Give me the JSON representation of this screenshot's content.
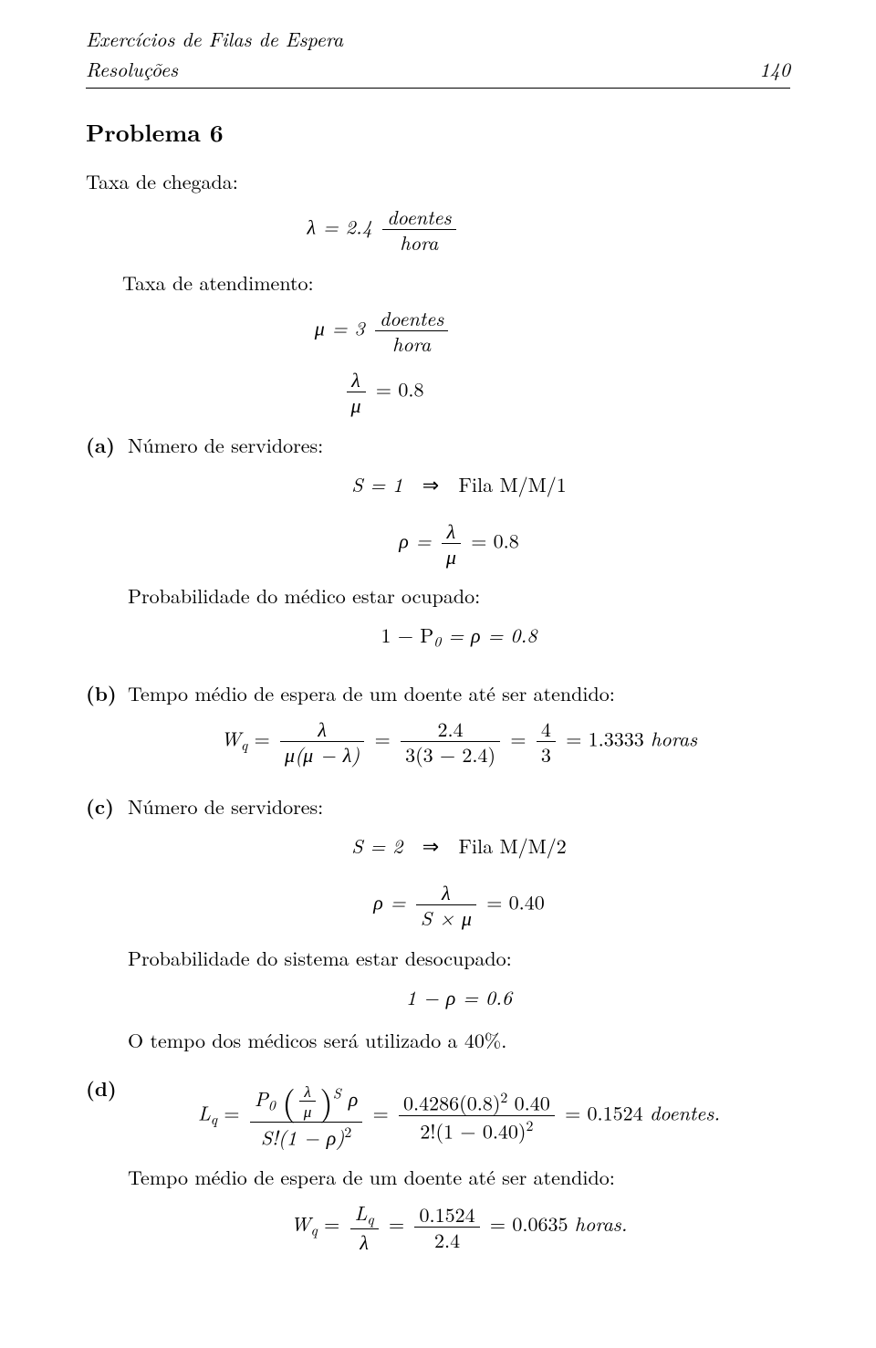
{
  "header": {
    "left1": "Exercícios de Filas de Espera",
    "left2": "Resoluções",
    "pageno": "140"
  },
  "title": "Problema 6",
  "p_arrival": "Taxa de chegada:",
  "p_service": "Taxa de atendimento:",
  "eq_lambda": "λ = 2.4",
  "unit_doentes": "doentes",
  "unit_hora": "hora",
  "eq_mu": "μ = 3",
  "eq_ratio_08": "= 0.8",
  "frac_lambda": "λ",
  "frac_mu": "μ",
  "a": {
    "bullet": "(a)",
    "label": "Número de servidores:",
    "eq_S": "S = 1",
    "arrow": "⇒",
    "fila": "Fila M/M/1",
    "rho_lhs": "ρ =",
    "rho_rhs": "= 0.8",
    "prob_text": "Probabilidade do médico estar ocupado:",
    "p0_eq": "1 − P",
    "p0_sub": "0",
    "p0_rhs": " = ρ = 0.8"
  },
  "b": {
    "bullet": "(b)",
    "label": "Tempo médio de espera de um doente até ser atendido:",
    "Wq": "W",
    "Wq_sub": "q",
    "mumu": "μ(μ − λ)",
    "f2num": "2.4",
    "f2den": "3(3 − 2.4)",
    "f3num": "4",
    "f3den": "3",
    "rhs": "= 1.3333 ",
    "horas": "horas"
  },
  "c": {
    "bullet": "(c)",
    "label": "Número de servidores:",
    "eq_S": "S = 2",
    "arrow": "⇒",
    "fila": "Fila M/M/2",
    "rho_lhs": "ρ =",
    "rho_den": "S × μ",
    "rho_rhs": "= 0.40",
    "prob_text": "Probabilidade do sistema estar desocupado:",
    "eq_1rho": "1 − ρ = 0.6",
    "time_text": "O tempo dos médicos será utilizado a 40%."
  },
  "d": {
    "bullet": "(d)",
    "Lq": "L",
    "Lq_sub": "q",
    "eq": " =",
    "P0": "P",
    "sub0": "0",
    "sup_S": "S",
    "rho": " ρ",
    "den1": "S!(1 − ρ)",
    "den1_sup": "2",
    "num2": "0.4286(0.8)",
    "num2_sup": "2",
    "num2b": " 0.40",
    "den2": "2!(1 − 0.40)",
    "den2_sup": "2",
    "rhs": "= 0.1524 ",
    "doentes_word": "doentes.",
    "time_text": "Tempo médio de espera de um doente até ser atendido:",
    "Wq": "W",
    "Wq_sub": "q",
    "f1num_L": "L",
    "f1num_sub": "q",
    "f1den": "λ",
    "f2num": "0.1524",
    "f2den": "2.4",
    "rhs2": "= 0.0635 ",
    "horas_word": "horas."
  }
}
